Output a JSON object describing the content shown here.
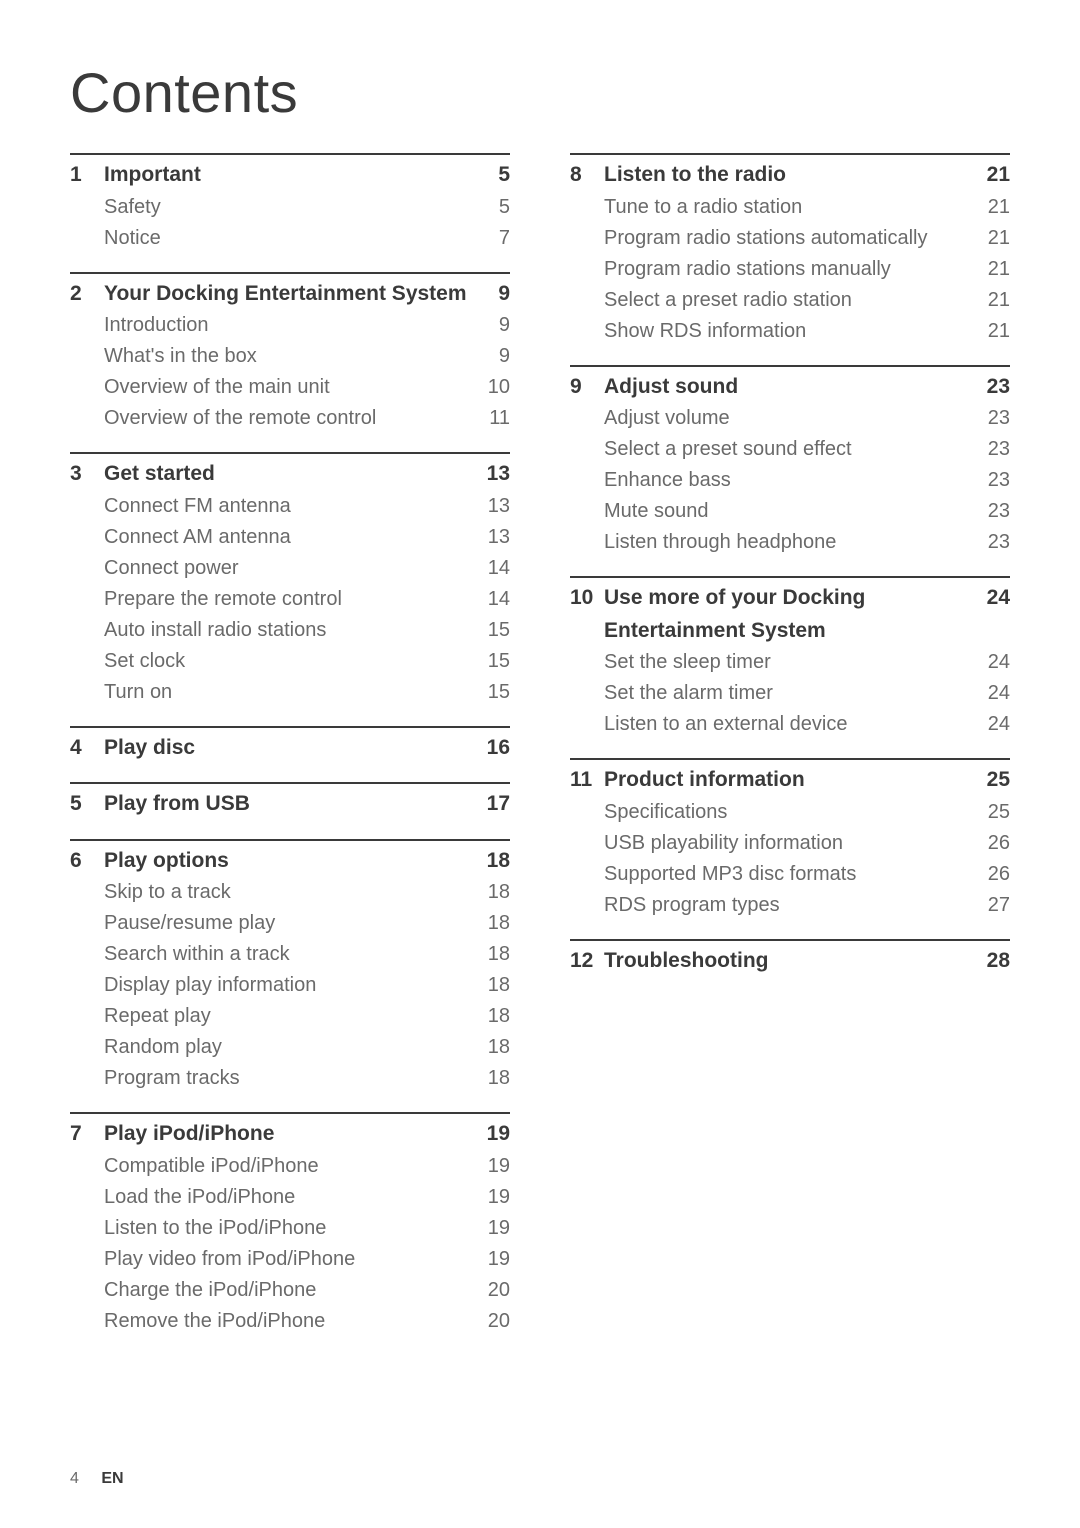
{
  "title": "Contents",
  "footer": {
    "page": "4",
    "lang": "EN"
  },
  "left": [
    {
      "head": {
        "num": "1",
        "label": "Important",
        "pg": "5"
      },
      "items": [
        {
          "label": "Safety",
          "pg": "5"
        },
        {
          "label": "Notice",
          "pg": "7"
        }
      ]
    },
    {
      "head": {
        "num": "2",
        "label": "Your Docking Entertainment System",
        "pg": "9"
      },
      "items": [
        {
          "label": "Introduction",
          "pg": "9"
        },
        {
          "label": "What's in the box",
          "pg": "9"
        },
        {
          "label": "Overview of the main unit",
          "pg": "10"
        },
        {
          "label": "Overview of the remote control",
          "pg": "11"
        }
      ]
    },
    {
      "head": {
        "num": "3",
        "label": "Get started",
        "pg": "13"
      },
      "items": [
        {
          "label": "Connect FM antenna",
          "pg": "13"
        },
        {
          "label": "Connect AM antenna",
          "pg": "13"
        },
        {
          "label": "Connect power",
          "pg": "14"
        },
        {
          "label": "Prepare the remote control",
          "pg": "14"
        },
        {
          "label": "Auto install radio stations",
          "pg": "15"
        },
        {
          "label": "Set clock",
          "pg": "15"
        },
        {
          "label": "Turn on",
          "pg": "15"
        }
      ]
    },
    {
      "head": {
        "num": "4",
        "label": "Play disc",
        "pg": "16"
      },
      "items": []
    },
    {
      "head": {
        "num": "5",
        "label": "Play from USB",
        "pg": "17"
      },
      "items": []
    },
    {
      "head": {
        "num": "6",
        "label": "Play options",
        "pg": "18"
      },
      "items": [
        {
          "label": "Skip to a track",
          "pg": "18"
        },
        {
          "label": "Pause/resume play",
          "pg": "18"
        },
        {
          "label": "Search within a track",
          "pg": "18"
        },
        {
          "label": "Display play information",
          "pg": "18"
        },
        {
          "label": "Repeat play",
          "pg": "18"
        },
        {
          "label": "Random play",
          "pg": "18"
        },
        {
          "label": "Program tracks",
          "pg": "18"
        }
      ]
    },
    {
      "head": {
        "num": "7",
        "label": "Play iPod/iPhone",
        "pg": "19"
      },
      "items": [
        {
          "label": "Compatible iPod/iPhone",
          "pg": "19"
        },
        {
          "label": "Load the iPod/iPhone",
          "pg": "19"
        },
        {
          "label": "Listen to the iPod/iPhone",
          "pg": "19"
        },
        {
          "label": "Play video from iPod/iPhone",
          "pg": "19"
        },
        {
          "label": "Charge the iPod/iPhone",
          "pg": "20"
        },
        {
          "label": "Remove the iPod/iPhone",
          "pg": "20"
        }
      ]
    }
  ],
  "right": [
    {
      "head": {
        "num": "8",
        "label": "Listen to the radio",
        "pg": "21"
      },
      "items": [
        {
          "label": "Tune to a radio station",
          "pg": "21"
        },
        {
          "label": "Program radio stations automatically",
          "pg": "21"
        },
        {
          "label": "Program radio stations manually",
          "pg": "21"
        },
        {
          "label": "Select a preset radio station",
          "pg": "21"
        },
        {
          "label": "Show RDS information",
          "pg": "21"
        }
      ]
    },
    {
      "head": {
        "num": "9",
        "label": "Adjust sound",
        "pg": "23"
      },
      "items": [
        {
          "label": "Adjust volume",
          "pg": "23"
        },
        {
          "label": "Select a preset sound effect",
          "pg": "23"
        },
        {
          "label": "Enhance bass",
          "pg": "23"
        },
        {
          "label": "Mute sound",
          "pg": "23"
        },
        {
          "label": "Listen through headphone",
          "pg": "23"
        }
      ]
    },
    {
      "head": {
        "num": "10",
        "label": "Use more of your Docking Entertainment System",
        "pg": "24",
        "multiline": true
      },
      "items": [
        {
          "label": "Set the sleep timer",
          "pg": "24"
        },
        {
          "label": "Set the alarm timer",
          "pg": "24"
        },
        {
          "label": "Listen to an external device",
          "pg": "24"
        }
      ]
    },
    {
      "head": {
        "num": "11",
        "label": "Product information",
        "pg": "25"
      },
      "items": [
        {
          "label": "Specifications",
          "pg": "25"
        },
        {
          "label": "USB playability information",
          "pg": "26"
        },
        {
          "label": "Supported MP3 disc formats",
          "pg": "26"
        },
        {
          "label": "RDS program types",
          "pg": "27"
        }
      ]
    },
    {
      "head": {
        "num": "12",
        "label": "Troubleshooting",
        "pg": "28"
      },
      "items": []
    }
  ]
}
